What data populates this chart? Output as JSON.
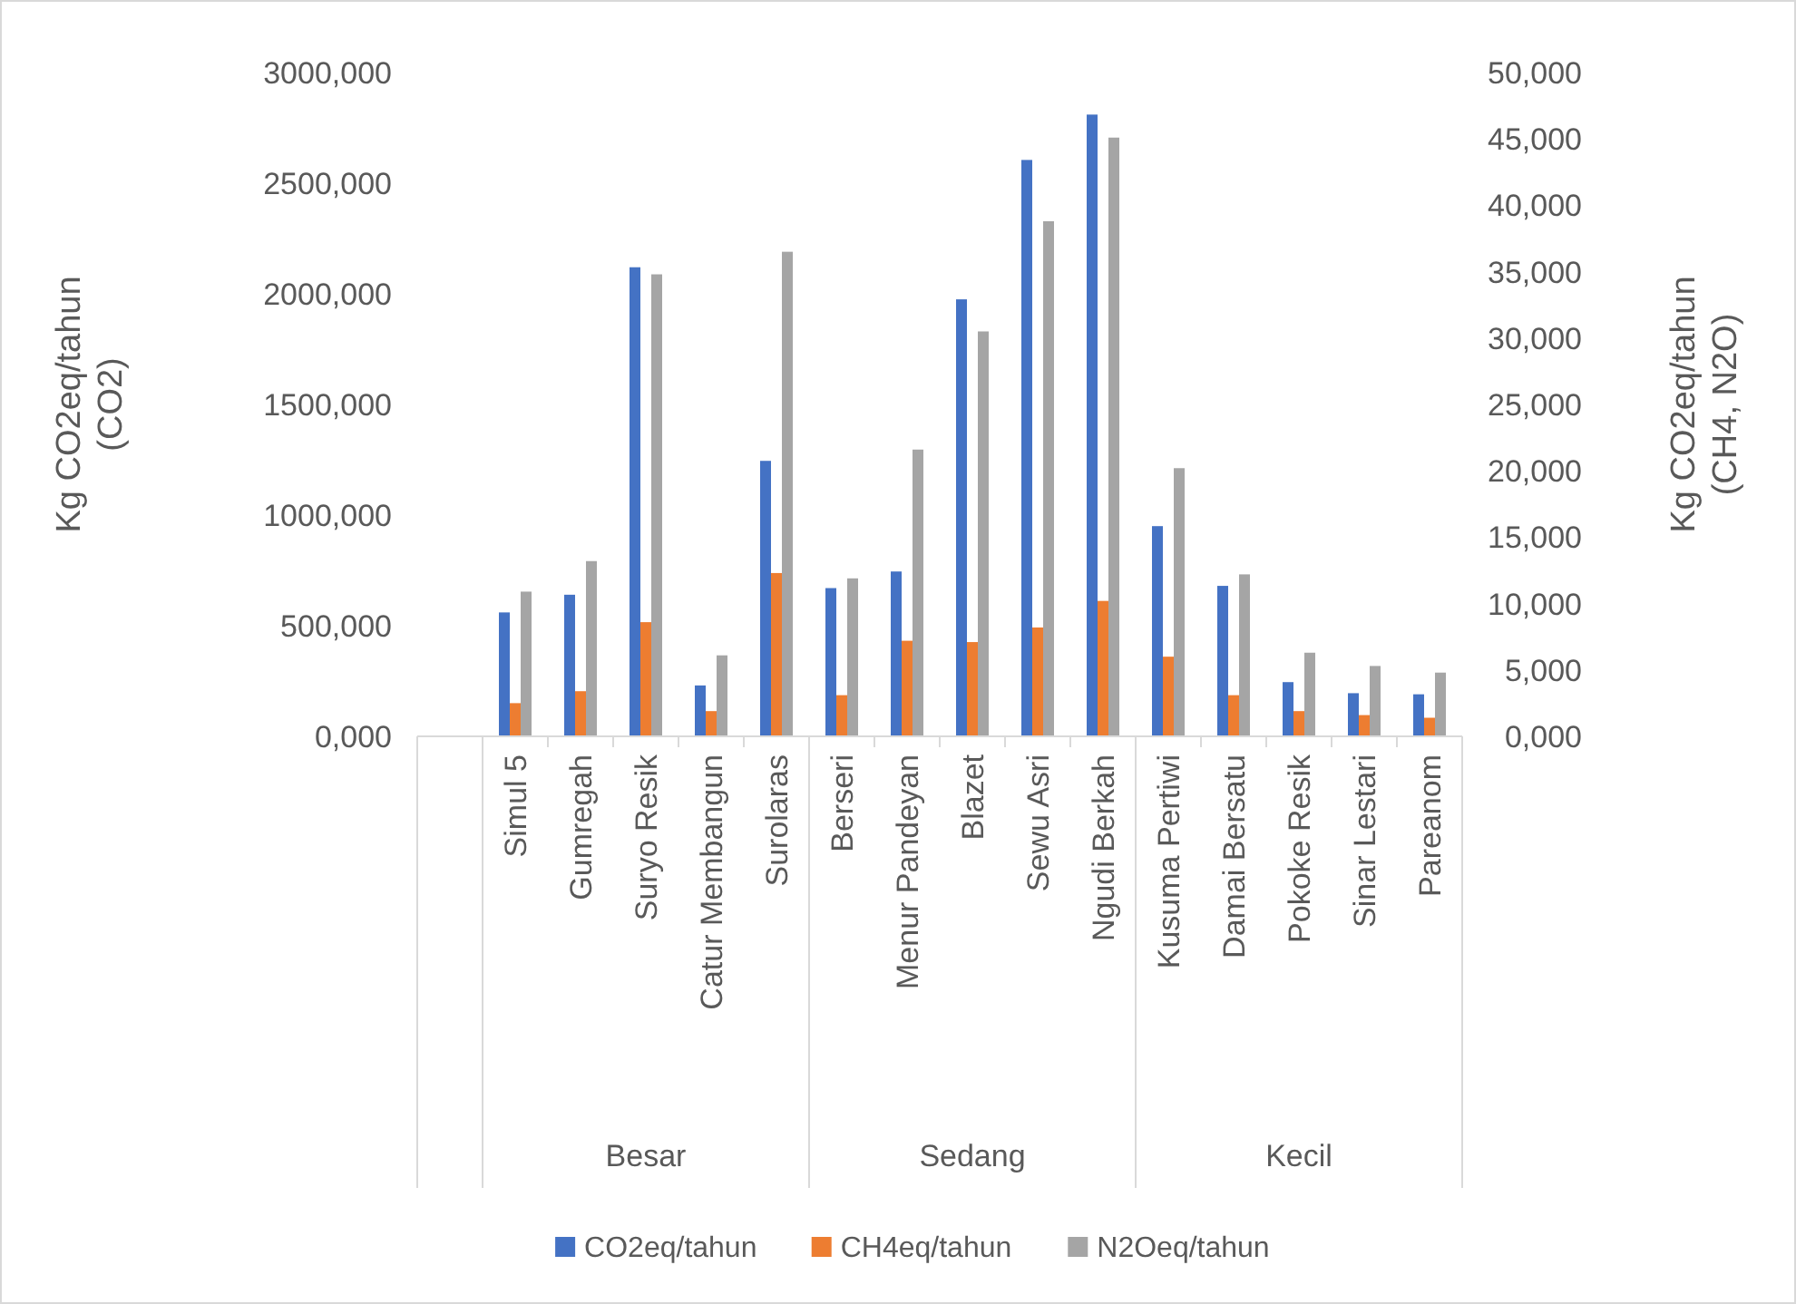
{
  "chart_data": {
    "type": "bar",
    "ylabel": "Kg CO2eq/tahun\n(CO2)",
    "y2label": "Kg CO2eq/tahun\n(CH4, N2O)",
    "categories": [
      null,
      "Simul 5",
      "Gumregah",
      "Suryo Resik",
      "Catur Membangun",
      "Surolaras",
      "Berseri",
      "Menur Pandeyan",
      "Blazet",
      "Sewu Asri",
      "Ngudi Berkah",
      "Kusuma Pertiwi",
      "Damai Bersatu",
      "Pokoke Resik",
      "Sinar Lestari",
      "Pareanom"
    ],
    "series": [
      {
        "name": "CO2eq/tahun",
        "color": "#4472c4",
        "values": [
          null,
          560,
          640,
          2120,
          230,
          1245,
          670,
          745,
          1975,
          2605,
          2810,
          950,
          680,
          245,
          195,
          190
        ]
      },
      {
        "name": "CH4eq/tahun",
        "color": "#ed7d31",
        "axis": "y2",
        "values": [
          null,
          2.5,
          3.4,
          8.6,
          1.9,
          12.3,
          3.1,
          7.2,
          7.1,
          8.2,
          10.2,
          6.0,
          3.1,
          1.9,
          1.6,
          1.4
        ]
      },
      {
        "name": "N2Oeq/tahun",
        "color": "#a5a5a5",
        "axis": "y2",
        "values": [
          null,
          10.9,
          13.2,
          34.8,
          6.1,
          36.5,
          11.9,
          21.6,
          30.5,
          38.8,
          45.1,
          20.2,
          12.2,
          6.3,
          5.3,
          4.8
        ]
      }
    ],
    "ylim": [
      0,
      3000
    ],
    "yticks": [
      {
        "value": 0,
        "label": "0,000"
      },
      {
        "value": 500,
        "label": "500,000"
      },
      {
        "value": 1000,
        "label": "1000,000"
      },
      {
        "value": 1500,
        "label": "1500,000"
      },
      {
        "value": 2000,
        "label": "2000,000"
      },
      {
        "value": 2500,
        "label": "2500,000"
      },
      {
        "value": 3000,
        "label": "3000,000"
      }
    ],
    "y2lim": [
      0,
      50
    ],
    "y2ticks": [
      {
        "value": 0,
        "label": "0,000"
      },
      {
        "value": 5,
        "label": "5,000"
      },
      {
        "value": 10,
        "label": "10,000"
      },
      {
        "value": 15,
        "label": "15,000"
      },
      {
        "value": 20,
        "label": "20,000"
      },
      {
        "value": 25,
        "label": "25,000"
      },
      {
        "value": 30,
        "label": "30,000"
      },
      {
        "value": 35,
        "label": "35,000"
      },
      {
        "value": 40,
        "label": "40,000"
      },
      {
        "value": 45,
        "label": "45,000"
      },
      {
        "value": 50,
        "label": "50,000"
      }
    ],
    "annotations": [
      "Besar",
      "Sedang",
      "Kecil"
    ],
    "grid": false,
    "legend": "bottom"
  }
}
